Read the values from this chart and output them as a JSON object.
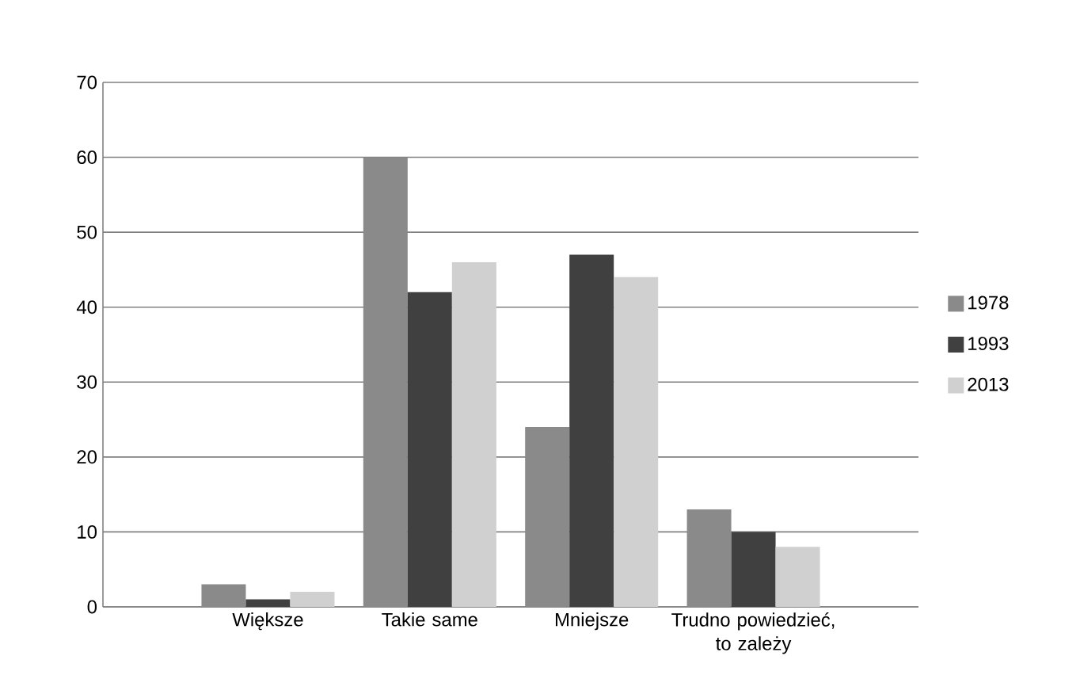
{
  "chart_data": {
    "type": "bar",
    "categories": [
      "Większe",
      "Takie same",
      "Mniejsze",
      "Trudno powiedzieć, to zależy"
    ],
    "series": [
      {
        "name": "1978",
        "color": "#8a8a8a",
        "values": [
          3,
          60,
          24,
          13
        ]
      },
      {
        "name": "1993",
        "color": "#404040",
        "values": [
          1,
          42,
          47,
          10
        ]
      },
      {
        "name": "2013",
        "color": "#d0d0d0",
        "values": [
          2,
          46,
          44,
          8
        ]
      }
    ],
    "ylim": [
      0,
      70
    ],
    "yticks": [
      0,
      10,
      20,
      30,
      40,
      50,
      60,
      70
    ],
    "grid": "y",
    "legend": "right"
  }
}
